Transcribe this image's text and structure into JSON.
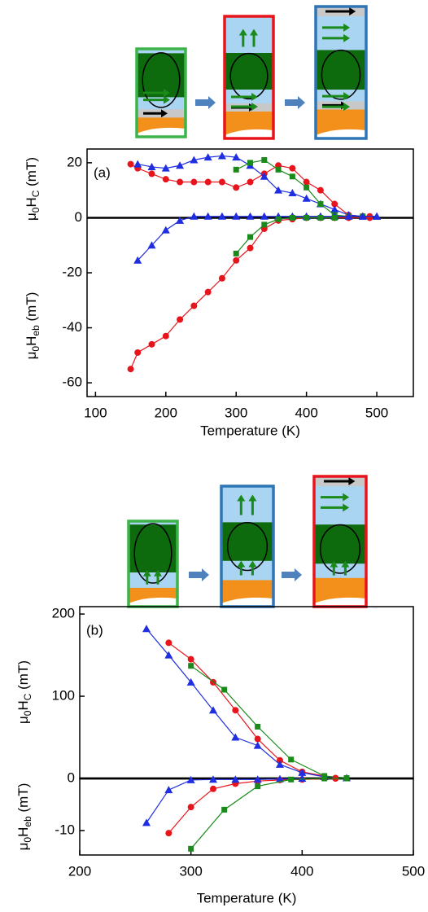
{
  "chart_data": [
    {
      "type": "line",
      "annotation": "(a)",
      "xlabel": "Temperature (K)",
      "ylabel_upper": [
        "μ",
        "0",
        "H",
        "C",
        " (mT)"
      ],
      "ylabel_lower": [
        "μ",
        "0",
        "H",
        "eb",
        " (mT)"
      ],
      "xlim": [
        88,
        552
      ],
      "xticks": [
        100,
        200,
        300,
        400,
        500
      ],
      "ylim": [
        -65,
        25
      ],
      "yticks": [
        -60,
        -40,
        -20,
        0,
        20
      ],
      "series": [
        {
          "color": "#e8141c",
          "marker": "circle",
          "x": [
            150,
            160,
            180,
            200,
            220,
            240,
            260,
            280,
            300,
            320,
            340,
            360,
            380,
            400,
            420,
            440,
            460,
            480,
            490
          ],
          "values": [
            19.5,
            18,
            16,
            14,
            13,
            13,
            13,
            13,
            11,
            13,
            16,
            19,
            18,
            13,
            10,
            5,
            1,
            0.5,
            0.5
          ]
        },
        {
          "color": "#1f2ee0",
          "marker": "triangle",
          "x": [
            160,
            180,
            200,
            220,
            240,
            260,
            280,
            300,
            320,
            340,
            360,
            380,
            400,
            420,
            440,
            460,
            480,
            500
          ],
          "values": [
            19.5,
            18.5,
            18,
            19,
            21,
            22,
            22.5,
            22,
            19,
            15,
            10,
            9,
            7,
            5,
            3,
            1,
            0.5,
            0.5
          ]
        },
        {
          "color": "#1a8a1a",
          "marker": "square",
          "x": [
            300,
            320,
            340,
            360,
            380,
            400,
            420,
            440,
            460,
            480
          ],
          "values": [
            17.5,
            20,
            21,
            17.5,
            15,
            11,
            5,
            1,
            0.5,
            0.5
          ]
        },
        {
          "color": "#e8141c",
          "marker": "circle",
          "x": [
            150,
            160,
            180,
            200,
            220,
            240,
            260,
            280,
            300,
            320,
            340,
            360,
            380,
            400,
            420,
            440,
            460,
            490
          ],
          "values": [
            -55,
            -49,
            -46,
            -43,
            -37,
            -32,
            -27,
            -22,
            -15.5,
            -11,
            -4,
            -1,
            -0.5,
            0,
            0,
            0,
            0,
            0
          ]
        },
        {
          "color": "#1f2ee0",
          "marker": "triangle",
          "x": [
            160,
            180,
            200,
            220,
            240,
            260,
            280,
            300,
            320,
            340,
            360,
            380,
            400,
            420,
            440,
            460,
            480,
            500
          ],
          "values": [
            -15.5,
            -10,
            -4.5,
            -1,
            0.5,
            0.5,
            0.5,
            0.5,
            0.5,
            0.5,
            0.5,
            0.5,
            0.5,
            0.5,
            0.5,
            0.5,
            0.5,
            0.5
          ]
        },
        {
          "color": "#1a8a1a",
          "marker": "square",
          "x": [
            300,
            320,
            340,
            360,
            380,
            400,
            420,
            440
          ],
          "values": [
            -13,
            -7,
            -2.5,
            -0.5,
            0,
            0,
            0,
            0
          ]
        }
      ]
    },
    {
      "type": "line",
      "annotation": "(b)",
      "ylabel": [
        "μ",
        "0",
        "H",
        "C",
        " (mT)"
      ],
      "xlim": [
        200,
        500
      ],
      "ylim": [
        0,
        209
      ],
      "yticks": [
        0,
        100,
        200
      ],
      "series": [
        {
          "color": "#e8141c",
          "marker": "circle",
          "x": [
            280,
            300,
            320,
            340,
            360,
            380,
            400,
            430
          ],
          "values": [
            165,
            145,
            117,
            83,
            48,
            22,
            8,
            0.5
          ]
        },
        {
          "color": "#1f2ee0",
          "marker": "triangle",
          "x": [
            260,
            280,
            300,
            320,
            340,
            360,
            380,
            400,
            420,
            440
          ],
          "values": [
            182,
            150,
            117,
            83,
            50,
            40,
            17,
            7,
            2,
            0.5
          ]
        },
        {
          "color": "#1a8a1a",
          "marker": "square",
          "x": [
            300,
            330,
            360,
            390,
            420,
            440
          ],
          "values": [
            137,
            108,
            63,
            23,
            3,
            0.5
          ]
        }
      ]
    },
    {
      "type": "line",
      "xlabel": "Temperature (K)",
      "ylabel": [
        "μ",
        "0",
        "H",
        "eb",
        " (mT)"
      ],
      "xlim": [
        200,
        500
      ],
      "xticks": [
        200,
        300,
        400,
        500
      ],
      "ylim": [
        -14.7,
        0
      ],
      "yticks": [
        -10
      ],
      "series": [
        {
          "color": "#e8141c",
          "marker": "circle",
          "x": [
            280,
            300,
            320,
            340,
            360,
            380,
            400,
            430
          ],
          "values": [
            -10.5,
            -5.5,
            -2,
            -1,
            -0.5,
            -0.3,
            -0.2,
            0
          ]
        },
        {
          "color": "#1f2ee0",
          "marker": "triangle",
          "x": [
            260,
            280,
            300,
            320,
            340,
            360,
            380,
            400
          ],
          "values": [
            -8.5,
            -2.2,
            -0.3,
            -0.2,
            -0.2,
            -0.2,
            -0.1,
            0
          ]
        },
        {
          "color": "#1a8a1a",
          "marker": "square",
          "x": [
            300,
            330,
            360,
            390,
            420,
            440
          ],
          "values": [
            -13.5,
            -6,
            -1.5,
            -0.2,
            0,
            0
          ]
        }
      ]
    }
  ]
}
